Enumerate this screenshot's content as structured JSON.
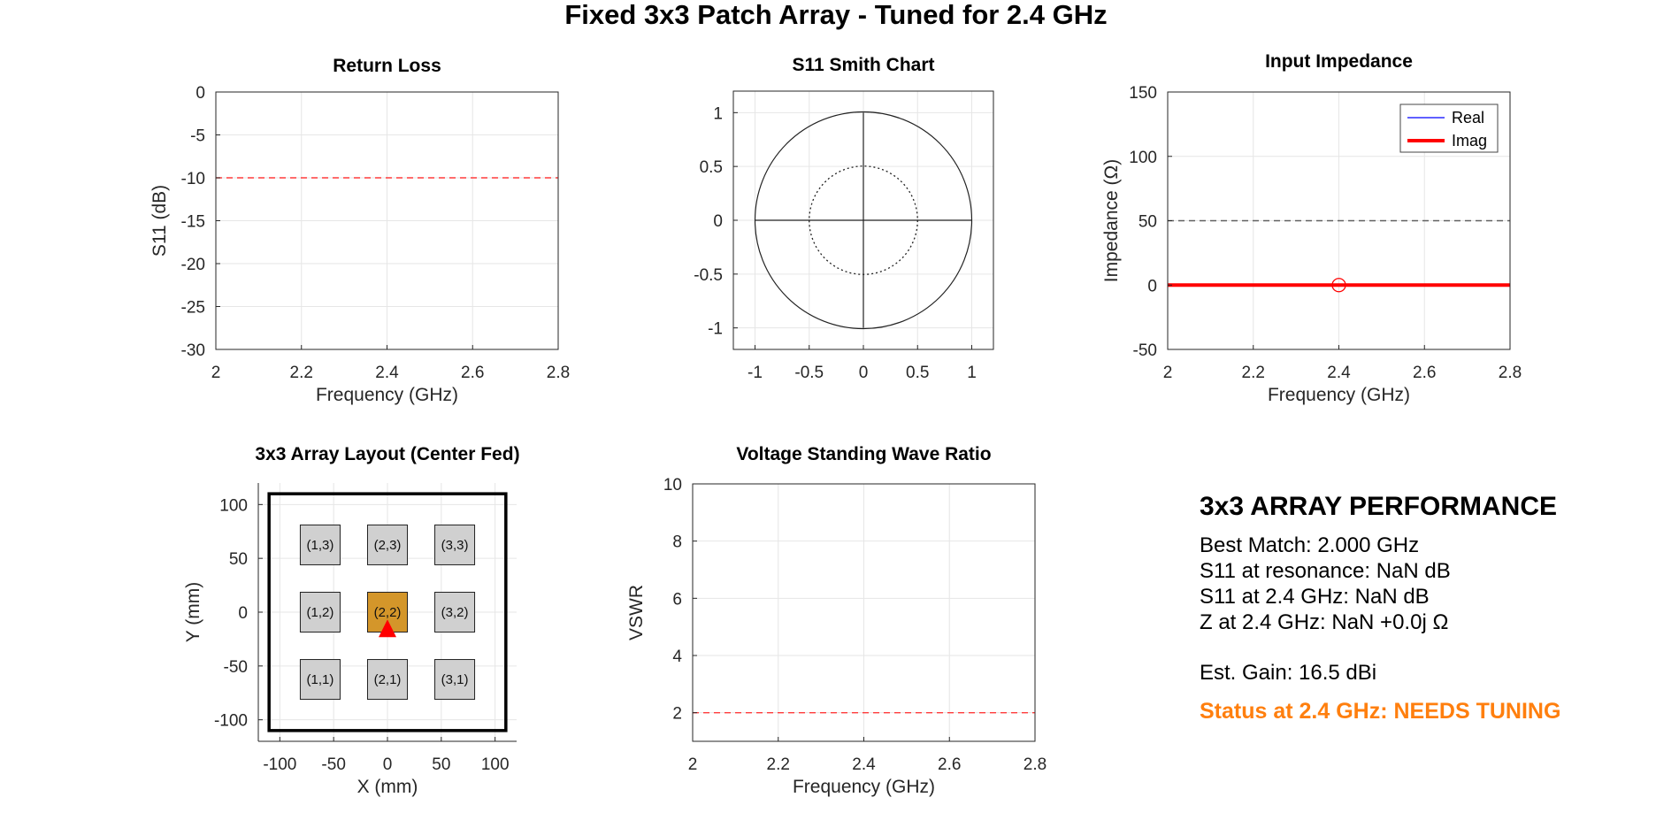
{
  "figure": {
    "title": "Fixed 3x3 Patch Array - Tuned for 2.4 GHz"
  },
  "colors": {
    "grid": "#e6e6e6",
    "axis": "#262626",
    "ref_red": "#ff3b3b",
    "real": "#0000ff",
    "imag": "#ff0000",
    "patch": "#d0d0d0",
    "fed_patch": "#d4962a",
    "status": "#ff7f0e"
  },
  "chart_data": [
    {
      "id": "return_loss",
      "type": "line",
      "title": "Return Loss",
      "xlabel": "Frequency (GHz)",
      "ylabel": "S11 (dB)",
      "xlim": [
        2,
        2.8
      ],
      "ylim": [
        -30,
        0
      ],
      "xticks": [
        2,
        2.2,
        2.4,
        2.6,
        2.8
      ],
      "xticklabels": [
        "2",
        "2.2",
        "2.4",
        "2.6",
        "2.8"
      ],
      "yticks": [
        0,
        -5,
        -10,
        -15,
        -20,
        -25,
        -30
      ],
      "yticklabels": [
        "0",
        "-5",
        "-10",
        "-15",
        "-20",
        "-25",
        "-30"
      ],
      "grid": true,
      "reference_lines": [
        {
          "y": -10,
          "style": "dashed",
          "color": "#ff3b3b"
        }
      ],
      "series": []
    },
    {
      "id": "smith",
      "type": "scatter",
      "title": "S11 Smith Chart",
      "xlim": [
        -1.2,
        1.2
      ],
      "ylim": [
        -1.2,
        1.2
      ],
      "xticks": [
        -1,
        -0.5,
        0,
        0.5,
        1
      ],
      "xticklabels": [
        "-1",
        "-0.5",
        "0",
        "0.5",
        "1"
      ],
      "yticks": [
        1,
        0.5,
        0,
        -0.5,
        -1
      ],
      "yticklabels": [
        "1",
        "0.5",
        "0",
        "-0.5",
        "-1"
      ],
      "grid": true,
      "circles": [
        {
          "center": [
            0,
            0
          ],
          "r": 1,
          "style": "solid"
        },
        {
          "center": [
            0,
            0
          ],
          "r": 0.5,
          "style": "dotted"
        }
      ],
      "axes_cross": true,
      "series": []
    },
    {
      "id": "impedance",
      "type": "line",
      "title": "Input Impedance",
      "xlabel": "Frequency (GHz)",
      "ylabel": "Impedance (Ω)",
      "xlim": [
        2,
        2.8
      ],
      "ylim": [
        -50,
        150
      ],
      "xticks": [
        2,
        2.2,
        2.4,
        2.6,
        2.8
      ],
      "xticklabels": [
        "2",
        "2.2",
        "2.4",
        "2.6",
        "2.8"
      ],
      "yticks": [
        150,
        100,
        50,
        0,
        -50
      ],
      "yticklabels": [
        "150",
        "100",
        "50",
        "0",
        "-50"
      ],
      "grid": true,
      "legend_position": "top-right",
      "reference_lines": [
        {
          "y": 50,
          "style": "dashed",
          "color": "#606060"
        }
      ],
      "series": [
        {
          "name": "Real",
          "color": "#0000ff",
          "x": [
            2,
            2.8
          ],
          "y": [
            0,
            0
          ]
        },
        {
          "name": "Imag",
          "color": "#ff0000",
          "x": [
            2,
            2.8
          ],
          "y": [
            0,
            0
          ]
        }
      ],
      "marker": {
        "x": 2.4,
        "y": 0,
        "shape": "circle",
        "color": "#ff0000"
      }
    },
    {
      "id": "array_layout",
      "type": "scatter",
      "title": "3x3 Array Layout (Center Fed)",
      "xlabel": "X (mm)",
      "ylabel": "Y (mm)",
      "xlim": [
        -120,
        120
      ],
      "ylim": [
        -120,
        120
      ],
      "xticks": [
        -100,
        -50,
        0,
        50,
        100
      ],
      "xticklabels": [
        "-100",
        "-50",
        "0",
        "50",
        "100"
      ],
      "yticks": [
        100,
        50,
        0,
        -50,
        -100
      ],
      "yticklabels": [
        "100",
        "50",
        "0",
        "-50",
        "-100"
      ],
      "grid": true,
      "ground_plane": {
        "x": [
          -110,
          110
        ],
        "y": [
          -110,
          110
        ]
      },
      "patch_size_mm": 37,
      "patches": [
        {
          "label": "(1,3)",
          "x": -62.5,
          "y": 62.5,
          "fed": false
        },
        {
          "label": "(2,3)",
          "x": 0,
          "y": 62.5,
          "fed": false
        },
        {
          "label": "(3,3)",
          "x": 62.5,
          "y": 62.5,
          "fed": false
        },
        {
          "label": "(1,2)",
          "x": -62.5,
          "y": 0,
          "fed": false
        },
        {
          "label": "(2,2)",
          "x": 0,
          "y": 0,
          "fed": true
        },
        {
          "label": "(3,2)",
          "x": 62.5,
          "y": 0,
          "fed": false
        },
        {
          "label": "(1,1)",
          "x": -62.5,
          "y": -62.5,
          "fed": false
        },
        {
          "label": "(2,1)",
          "x": 0,
          "y": -62.5,
          "fed": false
        },
        {
          "label": "(3,1)",
          "x": 62.5,
          "y": -62.5,
          "fed": false
        }
      ],
      "feed_point": {
        "x": 0,
        "y": -15,
        "shape": "triangle",
        "color": "#ff0000"
      }
    },
    {
      "id": "vswr",
      "type": "line",
      "title": "Voltage Standing Wave Ratio",
      "xlabel": "Frequency (GHz)",
      "ylabel": "VSWR",
      "xlim": [
        2,
        2.8
      ],
      "ylim": [
        1,
        10
      ],
      "xticks": [
        2,
        2.2,
        2.4,
        2.6,
        2.8
      ],
      "xticklabels": [
        "2",
        "2.2",
        "2.4",
        "2.6",
        "2.8"
      ],
      "yticks": [
        10,
        8,
        6,
        4,
        2
      ],
      "yticklabels": [
        "10",
        "8",
        "6",
        "4",
        "2"
      ],
      "grid": true,
      "reference_lines": [
        {
          "y": 2,
          "style": "dashed",
          "color": "#ff3b3b"
        }
      ],
      "series": []
    }
  ],
  "performance": {
    "title": "3x3 ARRAY PERFORMANCE",
    "lines": [
      "Best Match: 2.000 GHz",
      "S11 at resonance: NaN dB",
      "S11 at 2.4 GHz: NaN dB",
      "Z at 2.4 GHz: NaN +0.0j Ω"
    ],
    "gain": "Est. Gain: 16.5 dBi",
    "status": "Status at 2.4 GHz: NEEDS TUNING"
  }
}
